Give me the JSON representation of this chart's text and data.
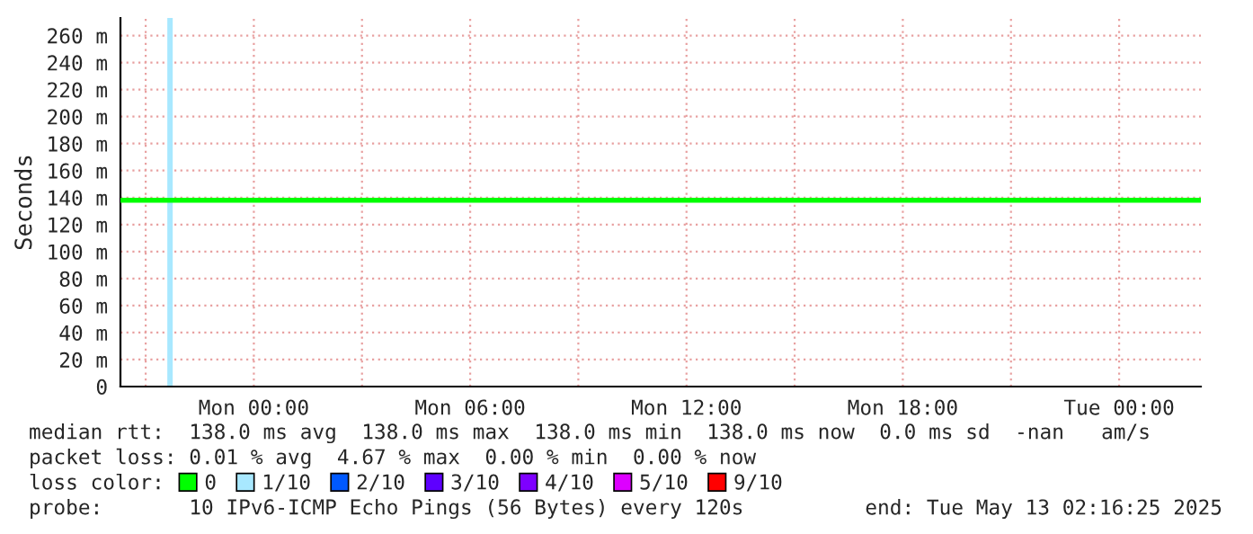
{
  "chart_data": {
    "type": "line",
    "ylabel": "Seconds",
    "legend_title": "loss color:",
    "legend": "bottom",
    "grid": true,
    "line_style": "solid",
    "marker": "none",
    "xlim": [
      "2025-05-11T20:18",
      "2025-05-13T02:16"
    ],
    "xticks": [
      {
        "value": "2025-05-11T21:00",
        "label": null
      },
      {
        "value": "2025-05-12T00:00",
        "label": "Mon 00:00"
      },
      {
        "value": "2025-05-12T03:00",
        "label": null
      },
      {
        "value": "2025-05-12T06:00",
        "label": "Mon 06:00"
      },
      {
        "value": "2025-05-12T09:00",
        "label": null
      },
      {
        "value": "2025-05-12T12:00",
        "label": "Mon 12:00"
      },
      {
        "value": "2025-05-12T15:00",
        "label": null
      },
      {
        "value": "2025-05-12T18:00",
        "label": "Mon 18:00"
      },
      {
        "value": "2025-05-12T21:00",
        "label": null
      },
      {
        "value": "2025-05-13T00:00",
        "label": "Tue 00:00"
      }
    ],
    "ylim": [
      0,
      273
    ],
    "yticks": [
      0,
      {
        "value": 20,
        "label": "20 m"
      },
      {
        "value": 40,
        "label": "40 m"
      },
      {
        "value": 60,
        "label": "60 m"
      },
      {
        "value": 80,
        "label": "80 m"
      },
      {
        "value": 100,
        "label": "100 m"
      },
      {
        "value": 120,
        "label": "120 m"
      },
      {
        "value": 140,
        "label": "140 m"
      },
      {
        "value": 160,
        "label": "160 m"
      },
      {
        "value": 180,
        "label": "180 m"
      },
      {
        "value": 200,
        "label": "200 m"
      },
      {
        "value": 220,
        "label": "220 m"
      },
      {
        "value": 240,
        "label": "240 m"
      },
      {
        "value": 260,
        "label": "260 m"
      }
    ],
    "series": [
      {
        "name": "0",
        "color": "#00ff00",
        "x": [
          "2025-05-11T20:18",
          "2025-05-11T21:42",
          "2025-05-13T02:16"
        ],
        "values": [
          138,
          138,
          138
        ]
      },
      {
        "name": "2/10",
        "color": "#0059ff"
      },
      {
        "name": "3/10",
        "color": "#5e00ff"
      },
      {
        "name": "4/10",
        "color": "#7e00ff"
      },
      {
        "name": "5/10",
        "color": "#dd00ff"
      },
      {
        "name": "9/10",
        "color": "#ff0000"
      }
    ],
    "bands": [
      {
        "axis": "x",
        "from": "2025-05-11T21:36",
        "to": "2025-05-11T21:45",
        "label": "1/10",
        "color": "#a8e8ff"
      }
    ],
    "annotations": [
      "median rtt:  138.0 ms avg  138.0 ms max  138.0 ms min  138.0 ms now  0.0 ms sd  -nan   am/s",
      "packet loss: 0.01 % avg  4.67 % max  0.00 % min  0.00 % now",
      "probe:       10 IPv6-ICMP Echo Pings (56 Bytes) every 120s",
      "end: Tue May 13 02:16:25 2025"
    ]
  }
}
